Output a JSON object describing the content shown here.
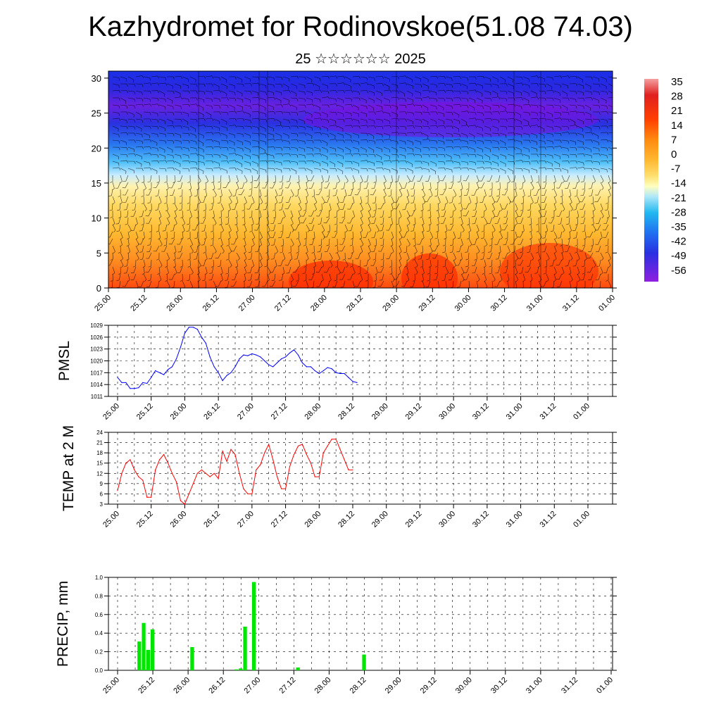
{
  "title": "Kazhydromet for Rodinovskoe(51.08 74.03)",
  "subtitle": "25 ☆☆☆☆☆☆ 2025",
  "time_labels": [
    "25.00",
    "25.12",
    "26.00",
    "26.12",
    "27.00",
    "27.12",
    "28.00",
    "28.12",
    "29.00",
    "29.12",
    "30.00",
    "30.12",
    "31.00",
    "31.12",
    "01.00"
  ],
  "colors": {
    "pmsl_line": "#0000ff",
    "temp_line": "#ff0000",
    "precip_bar": "#00e600",
    "grid": "#000000"
  },
  "chart_data": [
    {
      "type": "heatmap",
      "description_type": "temperature cross-section with wind barbs",
      "ylim": [
        0,
        31
      ],
      "y_ticks": [
        0,
        5,
        10,
        15,
        20,
        25,
        30
      ],
      "x_tick_labels": [
        "25.00",
        "25.12",
        "26.00",
        "26.12",
        "27.00",
        "27.12",
        "28.00",
        "28.12",
        "29.00",
        "29.12",
        "30.00",
        "30.12",
        "31.00",
        "31.12",
        "01.00"
      ],
      "colorbar_labels": [
        "35",
        "28",
        "21",
        "14",
        "7",
        "0",
        "-7",
        "-14",
        "-21",
        "-28",
        "-35",
        "-42",
        "-49",
        "-56"
      ],
      "colorbar_colors": [
        "#f08080",
        "#e02020",
        "#ff3300",
        "#ff6a00",
        "#ff9a20",
        "#ffc040",
        "#ffe680",
        "#ffffd0",
        "#a0e0f8",
        "#20b8f0",
        "#2080f0",
        "#2040e0",
        "#3010e0",
        "#8020e0"
      ],
      "levels_layer_temperature": [
        {
          "level": 0,
          "value": 12
        },
        {
          "level": 5,
          "value": 8
        },
        {
          "level": 10,
          "value": 2
        },
        {
          "level": 14,
          "value": -7
        },
        {
          "level": 17,
          "value": -18
        },
        {
          "level": 20,
          "value": -35
        },
        {
          "level": 23,
          "value": -50
        },
        {
          "level": 26,
          "value": -56
        },
        {
          "level": 30,
          "value": -53
        }
      ]
    },
    {
      "type": "line",
      "ylabel": "PMSL",
      "ylim": [
        1011,
        1029
      ],
      "y_ticks": [
        1011,
        1014,
        1017,
        1020,
        1023,
        1026,
        1029
      ],
      "x_tick_labels": [
        "25.00",
        "25.12",
        "26.00",
        "26.12",
        "27.00",
        "27.12",
        "28.00",
        "28.12",
        "29.00",
        "29.12",
        "30.00",
        "30.12",
        "31.00",
        "31.12",
        "01.00"
      ],
      "step_hours": 3,
      "values": [
        1015.8,
        1014.5,
        1014.5,
        1013,
        1013,
        1013.2,
        1014.5,
        1014.3,
        1015.8,
        1017.5,
        1017,
        1016.5,
        1017.8,
        1018.5,
        1020.5,
        1023.5,
        1027,
        1028.5,
        1028.5,
        1028,
        1026,
        1024.5,
        1021,
        1018.5,
        1017,
        1015,
        1016.3,
        1017,
        1018.5,
        1020.5,
        1021.5,
        1021.3,
        1021.8,
        1021.5,
        1021,
        1020,
        1019,
        1018.5,
        1019.5,
        1020.5,
        1021,
        1022,
        1022.8,
        1021.5,
        1019.5,
        1018.5,
        1018.5,
        1017.5,
        1016.8,
        1017.5,
        1018.3,
        1018,
        1017,
        1016.8,
        1016.8,
        1015.8,
        1014.8,
        1014.5
      ]
    },
    {
      "type": "line",
      "ylabel": "TEMP at 2 M",
      "ylim": [
        3,
        24
      ],
      "y_ticks": [
        3,
        6,
        9,
        12,
        15,
        18,
        21,
        24
      ],
      "x_tick_labels": [
        "25.00",
        "25.12",
        "26.00",
        "26.12",
        "27.00",
        "27.12",
        "28.00",
        "28.12",
        "29.00",
        "29.12",
        "30.00",
        "30.12",
        "31.00",
        "31.12",
        "01.00"
      ],
      "step_hours": 3,
      "values": [
        7,
        12,
        15,
        16,
        13,
        11,
        10,
        5,
        5,
        13,
        16,
        17.5,
        15,
        12,
        9.5,
        4,
        3,
        6,
        9,
        12,
        13,
        12,
        11,
        12,
        10.5,
        18.5,
        15.5,
        19,
        17.5,
        12,
        7.5,
        6,
        6,
        13,
        14.5,
        18,
        20.5,
        16,
        11,
        7.5,
        7.5,
        14,
        17.5,
        20,
        20.5,
        17.5,
        15,
        11,
        11,
        18,
        20,
        22,
        22,
        19,
        16,
        13,
        13
      ]
    },
    {
      "type": "bar",
      "ylabel": "PRECIP, mm",
      "ylim": [
        0,
        1.0
      ],
      "y_ticks": [
        0.0,
        0.2,
        0.4,
        0.6,
        0.8,
        1.0
      ],
      "x_tick_labels": [
        "25.00",
        "25.12",
        "26.00",
        "26.12",
        "27.00",
        "27.12",
        "28.00",
        "28.12",
        "29.00",
        "29.12",
        "30.00",
        "30.12",
        "31.00",
        "31.12",
        "01.00"
      ],
      "step_hours": 3,
      "values": [
        0,
        0,
        0,
        0,
        0,
        0.31,
        0.51,
        0.22,
        0.44,
        0,
        0,
        0,
        0,
        0,
        0,
        0,
        0,
        0.25,
        0,
        0,
        0,
        0,
        0,
        0,
        0,
        0,
        0,
        0.01,
        0.02,
        0.47,
        0,
        0.95,
        0,
        0,
        0,
        0,
        0,
        0,
        0,
        0,
        0,
        0.03,
        0,
        0,
        0,
        0,
        0,
        0,
        0,
        0,
        0,
        0,
        0,
        0,
        0,
        0,
        0.17,
        0,
        0,
        0,
        0,
        0,
        0,
        0,
        0,
        0,
        0,
        0,
        0
      ]
    }
  ]
}
